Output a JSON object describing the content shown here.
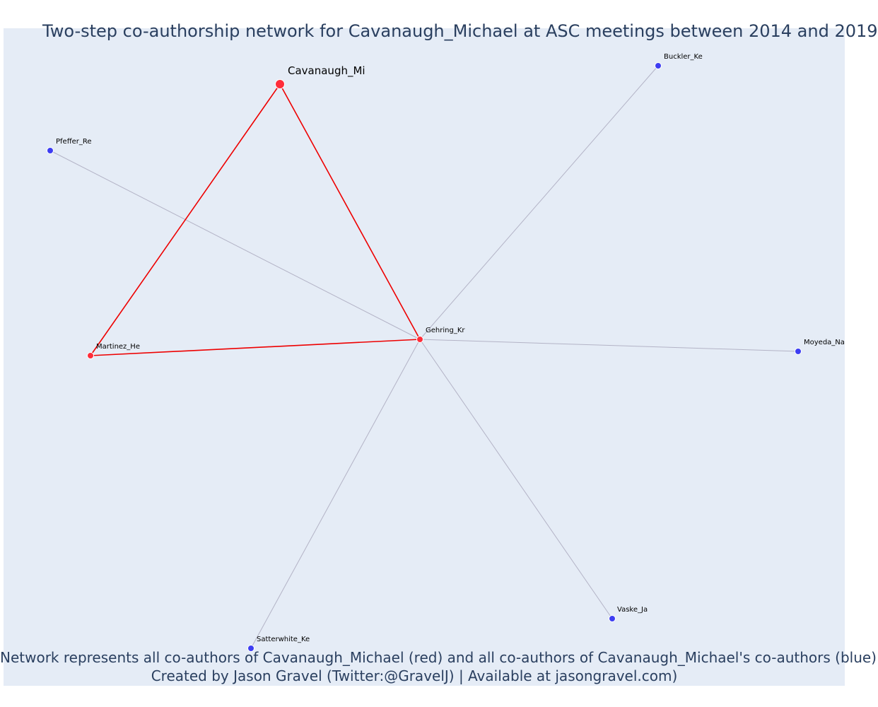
{
  "title": "Two-step co-authorship network for Cavanaugh_Michael at ASC meetings between 2014 and 2019",
  "caption": {
    "line1": "Network represents all co-authors of Cavanaugh_Michael (red) and all co-authors of Cavanaugh_Michael's co-authors (blue)",
    "line2": "Created by Jason Gravel (Twitter:@GravelJ) | Available at jasongravel.com)"
  },
  "colors": {
    "background": "#e5ecf6",
    "ego": "#ff2d3a",
    "first_step": "#ff2d3a",
    "second_step": "#3d3df2",
    "first_step_edge": "#ee0000",
    "second_step_edge": "#b3b3c6",
    "text": "#2a3f5f"
  },
  "chart_data": {
    "type": "network",
    "nodes": [
      {
        "id": "Cavanaugh_Mi",
        "label": "Cavanaugh_Mi",
        "group": "ego"
      },
      {
        "id": "Gehring_Kr",
        "label": "Gehring_Kr",
        "group": "first_step"
      },
      {
        "id": "Martinez_He",
        "label": "Martinez_He",
        "group": "first_step"
      },
      {
        "id": "Pfeffer_Re",
        "label": "Pfeffer_Re",
        "group": "second_step"
      },
      {
        "id": "Buckler_Ke",
        "label": "Buckler_Ke",
        "group": "second_step"
      },
      {
        "id": "Moyeda_Na",
        "label": "Moyeda_Na",
        "group": "second_step"
      },
      {
        "id": "Vaske_Ja",
        "label": "Vaske_Ja",
        "group": "second_step"
      },
      {
        "id": "Satterwhite_Ke",
        "label": "Satterwhite_Ke",
        "group": "second_step"
      }
    ],
    "edges": [
      {
        "source": "Cavanaugh_Mi",
        "target": "Martinez_He",
        "type": "first_step"
      },
      {
        "source": "Cavanaugh_Mi",
        "target": "Gehring_Kr",
        "type": "first_step"
      },
      {
        "source": "Martinez_He",
        "target": "Gehring_Kr",
        "type": "first_step"
      },
      {
        "source": "Gehring_Kr",
        "target": "Pfeffer_Re",
        "type": "second_step"
      },
      {
        "source": "Gehring_Kr",
        "target": "Buckler_Ke",
        "type": "second_step"
      },
      {
        "source": "Gehring_Kr",
        "target": "Moyeda_Na",
        "type": "second_step"
      },
      {
        "source": "Gehring_Kr",
        "target": "Vaske_Ja",
        "type": "second_step"
      },
      {
        "source": "Gehring_Kr",
        "target": "Satterwhite_Ke",
        "type": "second_step"
      }
    ]
  }
}
